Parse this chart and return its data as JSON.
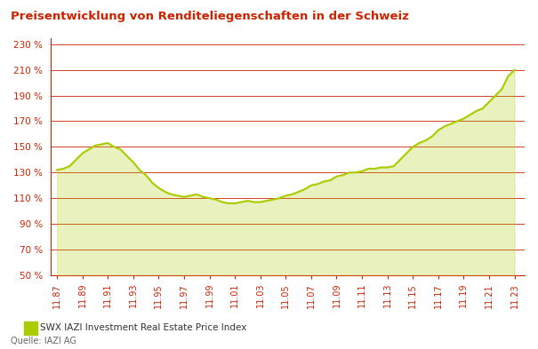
{
  "title": "Preisentwicklung von Renditeliegenschaften in der Schweiz",
  "title_color": "#cc2200",
  "title_fontsize": 9.5,
  "source": "Quelle: IAZI AG",
  "legend_label": "SWX IAZI Investment Real Estate Price Index",
  "line_color": "#aacc00",
  "grid_color": "#cc2200",
  "background_color": "#ffffff",
  "axis_color": "#cc2200",
  "tick_color": "#cc2200",
  "ylim": [
    50,
    235
  ],
  "yticks": [
    50,
    70,
    90,
    110,
    130,
    150,
    170,
    190,
    210,
    230
  ],
  "ytick_labels": [
    "50 %",
    "70 %",
    "90 %",
    "110 %",
    "130 %",
    "150 %",
    "170 %",
    "190 %",
    "210 %",
    "230 %"
  ],
  "xtick_labels": [
    "11.87",
    "11.89",
    "11.91",
    "11.93",
    "11.95",
    "11.97",
    "11.99",
    "11.01",
    "11.03",
    "11.05",
    "11.07",
    "11.09",
    "11.11",
    "11.13",
    "11.15",
    "11.17",
    "11.19",
    "11.21",
    "11.23"
  ],
  "x_values": [
    1987,
    1989,
    1991,
    1993,
    1995,
    1997,
    1999,
    2001,
    2003,
    2005,
    2007,
    2009,
    2011,
    2013,
    2015,
    2017,
    2019,
    2021,
    2023
  ],
  "series": {
    "x": [
      1987.0,
      1987.5,
      1988.0,
      1988.5,
      1989.0,
      1989.5,
      1990.0,
      1990.5,
      1991.0,
      1991.5,
      1992.0,
      1992.5,
      1993.0,
      1993.5,
      1994.0,
      1994.5,
      1995.0,
      1995.5,
      1996.0,
      1996.5,
      1997.0,
      1997.5,
      1998.0,
      1998.5,
      1999.0,
      1999.5,
      2000.0,
      2000.5,
      2001.0,
      2001.5,
      2002.0,
      2002.5,
      2003.0,
      2003.5,
      2004.0,
      2004.5,
      2005.0,
      2005.5,
      2006.0,
      2006.5,
      2007.0,
      2007.5,
      2008.0,
      2008.5,
      2009.0,
      2009.5,
      2010.0,
      2010.5,
      2011.0,
      2011.5,
      2012.0,
      2012.5,
      2013.0,
      2013.5,
      2014.0,
      2014.5,
      2015.0,
      2015.5,
      2016.0,
      2016.5,
      2017.0,
      2017.5,
      2018.0,
      2018.5,
      2019.0,
      2019.5,
      2020.0,
      2020.5,
      2021.0,
      2021.5,
      2022.0,
      2022.5,
      2023.0
    ],
    "y": [
      132,
      133,
      135,
      140,
      145,
      148,
      151,
      152,
      153,
      150,
      148,
      143,
      138,
      132,
      128,
      122,
      118,
      115,
      113,
      112,
      111,
      112,
      113,
      111,
      110,
      109,
      107,
      106,
      106,
      107,
      108,
      107,
      107,
      108,
      109,
      110,
      112,
      113,
      115,
      117,
      120,
      121,
      123,
      124,
      127,
      128,
      130,
      130,
      131,
      133,
      133,
      134,
      134,
      135,
      140,
      145,
      150,
      153,
      155,
      158,
      163,
      166,
      168,
      170,
      172,
      175,
      178,
      180,
      185,
      190,
      195,
      205,
      210
    ]
  }
}
